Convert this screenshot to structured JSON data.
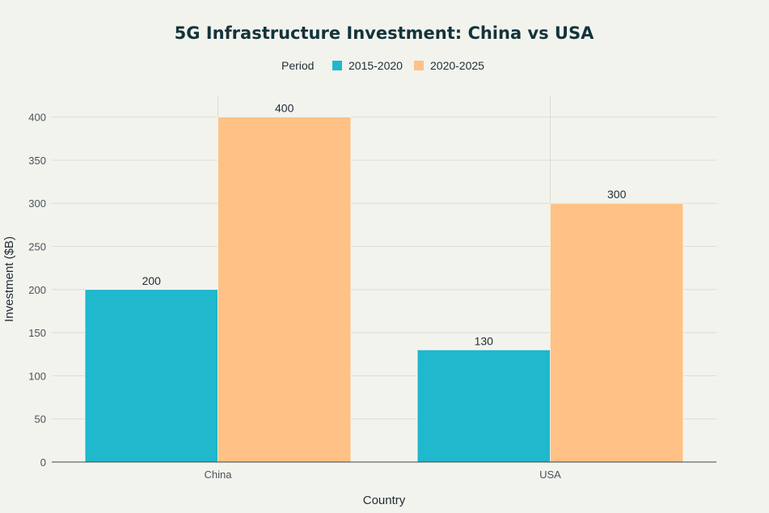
{
  "chart_data": {
    "type": "bar",
    "title": "5G Infrastructure Investment: China vs USA",
    "xlabel": "Country",
    "ylabel": "Investment ($B)",
    "categories": [
      "China",
      "USA"
    ],
    "series": [
      {
        "name": "2015-2020",
        "values": [
          200,
          130
        ],
        "color": "#1fb8cd"
      },
      {
        "name": "2020-2025",
        "values": [
          400,
          300
        ],
        "color": "#ffc185"
      }
    ],
    "ylim": [
      0,
      425
    ],
    "yticks": [
      0,
      50,
      100,
      150,
      200,
      250,
      300,
      350,
      400
    ],
    "legend": {
      "title": "Period",
      "placement": "top-center"
    },
    "grid": true,
    "data_labels": true
  }
}
